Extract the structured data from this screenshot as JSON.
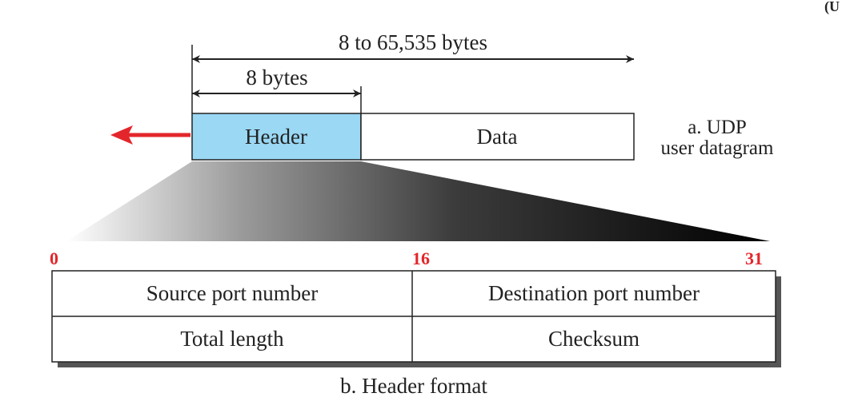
{
  "datagram": {
    "total_size_label": "8 to 65,535 bytes",
    "header_size_label": "8 bytes",
    "header_label": "Header",
    "data_label": "Data",
    "caption_line1": "a. UDP",
    "caption_line2": "user datagram"
  },
  "header_format": {
    "bit_start": "0",
    "bit_middle": "16",
    "bit_end": "31",
    "fields": [
      {
        "label": "Source port number"
      },
      {
        "label": "Destination port number"
      },
      {
        "label": "Total length"
      },
      {
        "label": "Checksum"
      }
    ],
    "caption": "b. Header format"
  },
  "colors": {
    "header_fill": "#9ad8f4",
    "bit_label": "#e3262b",
    "arrow_red": "#e3262b",
    "shadow": "#555555",
    "stroke": "#222222"
  },
  "corner_mark": "(U"
}
